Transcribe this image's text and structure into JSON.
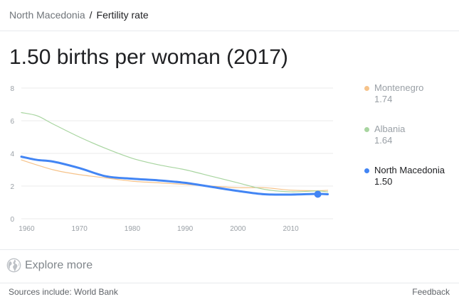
{
  "breadcrumb": {
    "parent": "North Macedonia",
    "separator": "/",
    "current": "Fertility rate"
  },
  "headline": "1.50 births per woman (2017)",
  "legend": [
    {
      "name": "Montenegro",
      "value": "1.74",
      "color": "#f6c38a",
      "state": "inactive"
    },
    {
      "name": "Albania",
      "value": "1.64",
      "color": "#a8d5a0",
      "state": "inactive"
    },
    {
      "name": "North Macedonia",
      "value": "1.50",
      "color": "#4285f4",
      "state": "active"
    }
  ],
  "explore": {
    "label": "Explore more",
    "icon": "globe-icon"
  },
  "footer": {
    "sources": "Sources include: World Bank",
    "feedback": "Feedback"
  },
  "chart_data": {
    "type": "line",
    "title": "",
    "xlabel": "",
    "ylabel": "",
    "xlim": [
      1959,
      2018
    ],
    "ylim": [
      0,
      8
    ],
    "x_ticks": [
      1960,
      1970,
      1980,
      1990,
      2000,
      2010
    ],
    "y_ticks": [
      0,
      2,
      4,
      6,
      8
    ],
    "grid": true,
    "legend_position": "right",
    "series": [
      {
        "name": "Montenegro",
        "color": "#f6c38a",
        "x": [
          1959,
          1965,
          1970,
          1975,
          1980,
          1985,
          1990,
          1995,
          2000,
          2005,
          2010,
          2015,
          2017
        ],
        "y": [
          3.6,
          3.0,
          2.7,
          2.5,
          2.3,
          2.2,
          2.1,
          2.0,
          1.9,
          1.9,
          1.75,
          1.72,
          1.74
        ]
      },
      {
        "name": "Albania",
        "color": "#a8d5a0",
        "x": [
          1959,
          1962,
          1965,
          1970,
          1975,
          1980,
          1985,
          1990,
          1995,
          2000,
          2005,
          2010,
          2015,
          2017
        ],
        "y": [
          6.5,
          6.3,
          5.8,
          5.0,
          4.3,
          3.7,
          3.3,
          3.0,
          2.6,
          2.2,
          1.8,
          1.65,
          1.7,
          1.64
        ]
      },
      {
        "name": "North Macedonia",
        "color": "#4285f4",
        "x": [
          1959,
          1962,
          1965,
          1970,
          1975,
          1980,
          1985,
          1990,
          1995,
          2000,
          2005,
          2010,
          2015,
          2017
        ],
        "y": [
          3.8,
          3.6,
          3.5,
          3.1,
          2.6,
          2.45,
          2.35,
          2.2,
          1.95,
          1.7,
          1.5,
          1.48,
          1.52,
          1.5
        ]
      }
    ]
  }
}
